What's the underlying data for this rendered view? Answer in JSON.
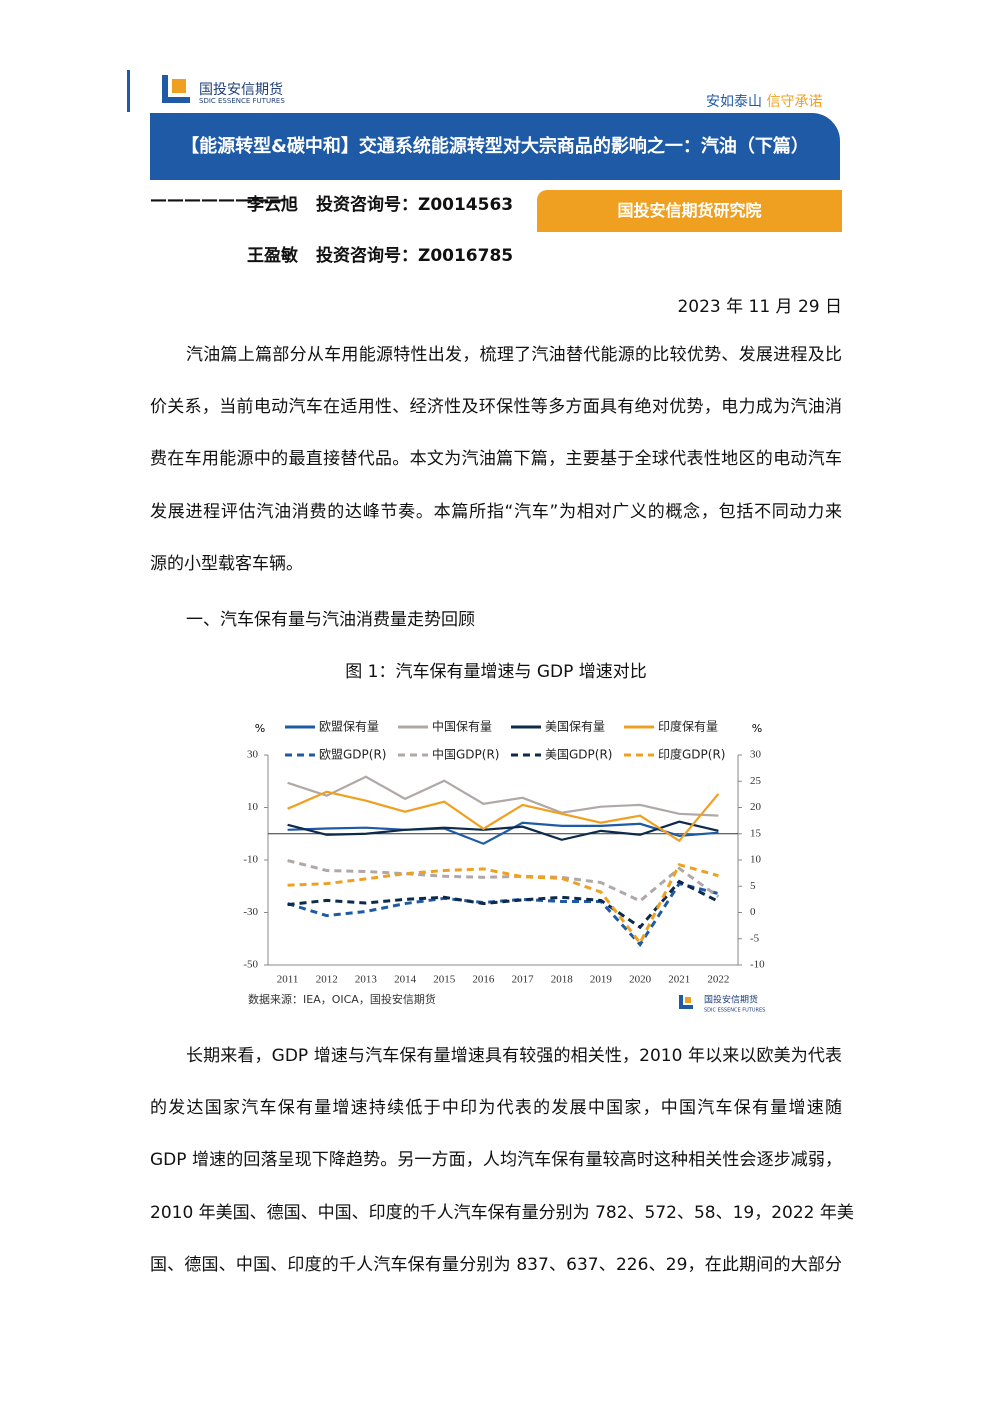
{
  "header": {
    "logo_cn": "国投安信期货",
    "logo_en": "SDIC ESSENCE FUTURES",
    "slogan": [
      "安如泰山",
      "信守承诺"
    ]
  },
  "title": "【能源转型&碳中和】交通系统能源转型对大宗商品的影响之一：汽油（下篇）",
  "authors": [
    {
      "dash": "————————",
      "name": "李云旭",
      "license": "投资咨询号：Z0014563"
    },
    {
      "name": "王盈敏",
      "license": "投资咨询号：Z0016785"
    }
  ],
  "institute": "国投安信期货研究院",
  "date": "2023 年 11 月 29 日",
  "paragraphs": [
    [
      "汽油篇上篇部分从车用能源特性出发，梳理了汽油替代能源的比较优势、发展进程及比",
      "价关系，当前电动汽车在适用性、经济性及环保性等多方面具有绝对优势，电力成为汽油消",
      "费在车用能源中的最直接替代品。本文为汽油篇下篇，主要基于全球代表性地区的电动汽车",
      "发展进程评估汽油消费的达峰节奏。本篇所指“汽车”为相对广义的概念，包括不同动力来",
      "源的小型载客车辆。"
    ],
    [
      "长期来看，GDP 增速与汽车保有量增速具有较强的相关性，2010 年以来以欧美为代表",
      "的发达国家汽车保有量增速持续低于中印为代表的发展中国家，中国汽车保有量增速随",
      "GDP 增速的回落呈现下降趋势。另一方面，人均汽车保有量较高时这种相关性会逐步减弱，",
      "2010 年美国、德国、中国、印度的千人汽车保有量分别为 782、572、58、19，2022 年美",
      "国、德国、中国、印度的千人汽车保有量分别为 837、637、226、29，在此期间的大部分"
    ]
  ],
  "section": "一、汽车保有量与汽油消费量走势回顾",
  "figure": {
    "caption": "图 1：汽车保有量增速与 GDP 增速对比",
    "source": "数据来源：IEA，OICA，国投安信期货"
  },
  "chart_data": {
    "type": "line",
    "ylabel": "%",
    "y2label": "%",
    "legend": "top",
    "categories": [
      "2011",
      "2012",
      "2013",
      "2014",
      "2015",
      "2016",
      "2017",
      "2018",
      "2019",
      "2020",
      "2021",
      "2022"
    ],
    "ylim": [
      -50,
      30
    ],
    "yticks": [
      -50,
      -30,
      -10,
      10,
      30
    ],
    "y2lim": [
      -10,
      30
    ],
    "y2ticks": [
      -10,
      -5,
      0,
      5,
      10,
      15,
      20,
      25,
      30
    ],
    "series": [
      {
        "name": "欧盟保有量",
        "color": "#1f5aa6",
        "values": [
          1.5,
          2,
          2.3,
          1.5,
          2,
          -3.8,
          4.2,
          3,
          3,
          3.8,
          -0.8,
          0.4
        ]
      },
      {
        "name": "中国保有量",
        "color": "#b0a8a6",
        "values": [
          19.4,
          14.5,
          21.7,
          13.3,
          20.2,
          11.4,
          13.7,
          8,
          10.3,
          11,
          7.6,
          6.9
        ]
      },
      {
        "name": "美国保有量",
        "color": "#0d2a4a",
        "values": [
          3.4,
          -0.4,
          0,
          1.5,
          2.3,
          1.5,
          2.7,
          -2.3,
          1.1,
          -0.4,
          4.6,
          1.1
        ]
      },
      {
        "name": "印度保有量",
        "color": "#f0a020",
        "values": [
          9.5,
          16,
          12.6,
          8.4,
          12.2,
          1.9,
          11,
          7.6,
          4.2,
          6.9,
          -2.7,
          15.2
        ]
      },
      {
        "name": "欧盟GDP(R)",
        "color": "#1f5aa6",
        "axis": "y2",
        "style": "dashed",
        "values": [
          1.7,
          -0.6,
          0.2,
          1.7,
          2.7,
          1.9,
          2.5,
          2.1,
          2.1,
          -6.1,
          5.5,
          3.6
        ]
      },
      {
        "name": "中国GDP(R)",
        "color": "#b0a8a6",
        "axis": "y2",
        "style": "dashed",
        "values": [
          9.9,
          8,
          7.8,
          7.4,
          6.9,
          6.7,
          6.9,
          6.7,
          5.7,
          2.2,
          8.4,
          3
        ]
      },
      {
        "name": "美国GDP(R)",
        "color": "#0d2a4a",
        "axis": "y2",
        "style": "dashed",
        "values": [
          1.5,
          2.3,
          1.8,
          2.5,
          2.9,
          1.7,
          2.4,
          2.9,
          2.3,
          -2.8,
          5.9,
          2.1
        ]
      },
      {
        "name": "印度GDP(R)",
        "color": "#f0a020",
        "axis": "y2",
        "style": "dashed",
        "values": [
          5.2,
          5.5,
          6.4,
          7.4,
          8,
          8.3,
          6.8,
          6.5,
          3.9,
          -5.8,
          9.1,
          7
        ]
      }
    ]
  }
}
